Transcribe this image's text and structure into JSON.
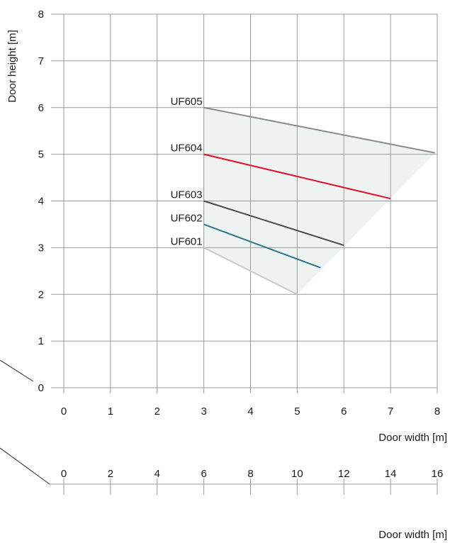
{
  "chart_data": {
    "type": "line",
    "ylabel": "Door height [m]",
    "xlabel": "Door width [m]",
    "xlim": [
      0,
      8
    ],
    "ylim": [
      0,
      8
    ],
    "x_ticks": [
      "0",
      "1",
      "2",
      "3",
      "4",
      "5",
      "6",
      "7",
      "8"
    ],
    "y_ticks": [
      "0",
      "1",
      "2",
      "3",
      "4",
      "5",
      "6",
      "7",
      "8"
    ],
    "grid": true,
    "area_fill": "#eef3f1",
    "series": [
      {
        "name": "UF601",
        "color": "#c8c8c8",
        "points": [
          [
            3,
            3.0
          ],
          [
            5,
            2.0
          ]
        ]
      },
      {
        "name": "UF602",
        "color": "#2e7582",
        "points": [
          [
            3,
            3.5
          ],
          [
            5.5,
            2.57
          ]
        ]
      },
      {
        "name": "UF603",
        "color": "#4a4a4a",
        "points": [
          [
            3,
            4.0
          ],
          [
            6,
            3.05
          ]
        ]
      },
      {
        "name": "UF604",
        "color": "#e0102f",
        "points": [
          [
            3,
            5.0
          ],
          [
            7,
            4.05
          ]
        ]
      },
      {
        "name": "UF605",
        "color": "#8c8c8c",
        "points": [
          [
            3,
            6.0
          ],
          [
            7.95,
            5.03
          ]
        ]
      }
    ],
    "secondary_axis": {
      "xlabel": "Door width [m]",
      "xlim": [
        0,
        16
      ],
      "x_ticks": [
        "0",
        "2",
        "4",
        "6",
        "8",
        "10",
        "12",
        "14",
        "16"
      ]
    }
  }
}
